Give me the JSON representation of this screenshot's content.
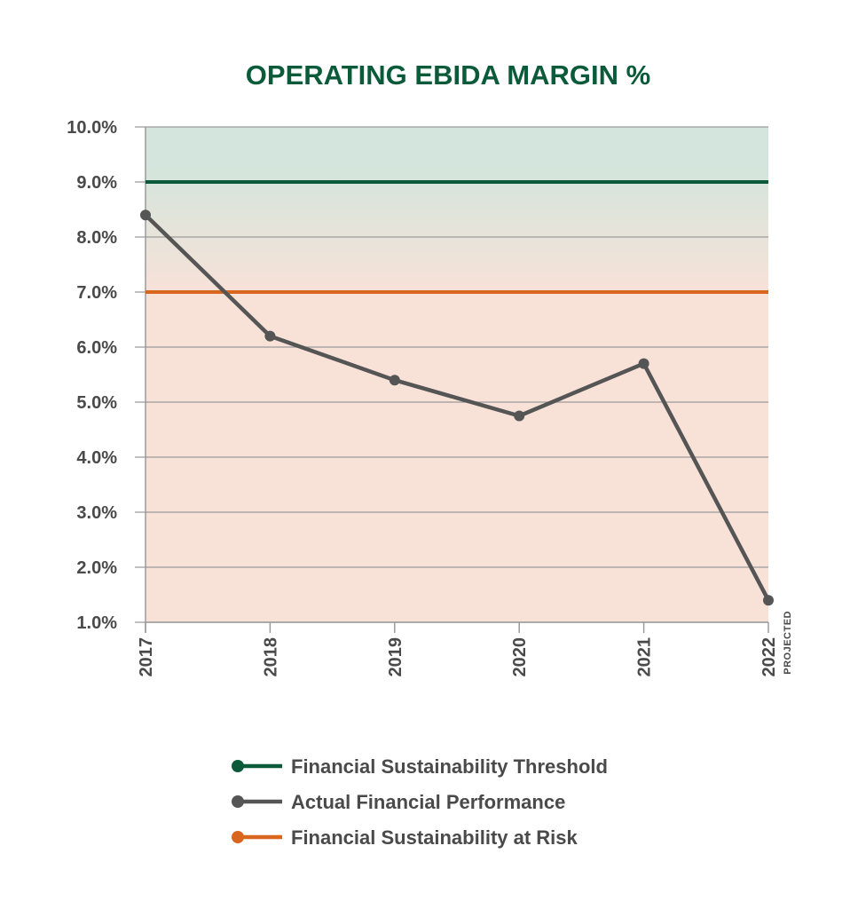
{
  "chart_data": {
    "type": "line",
    "title": "OPERATING EBIDA MARGIN %",
    "xlabel": "",
    "ylabel": "",
    "categories": [
      "2017",
      "2018",
      "2019",
      "2020",
      "2021",
      "2022"
    ],
    "category_notes": {
      "2022": "PROJECTED"
    },
    "ylim": [
      1.0,
      10.0
    ],
    "y_ticks": [
      "1.0%",
      "2.0%",
      "3.0%",
      "4.0%",
      "5.0%",
      "6.0%",
      "7.0%",
      "8.0%",
      "9.0%",
      "10.0%"
    ],
    "grid": true,
    "series": [
      {
        "name": "Actual Financial Performance",
        "color": "#555555",
        "values": [
          8.4,
          6.2,
          5.4,
          4.75,
          5.7,
          1.4
        ]
      }
    ],
    "reference_lines": [
      {
        "name": "Financial Sustainability Threshold",
        "value": 9.0,
        "color": "#0b5a3a"
      },
      {
        "name": "Financial Sustainability at Risk",
        "value": 7.0,
        "color": "#d9661f"
      }
    ],
    "legend": {
      "position": "bottom",
      "items": [
        {
          "label": "Financial Sustainability Threshold",
          "color": "#0b5a3a"
        },
        {
          "label": "Actual Financial Performance",
          "color": "#555555"
        },
        {
          "label": "Financial Sustainability at Risk",
          "color": "#d9661f"
        }
      ]
    },
    "background_colors": {
      "top": "#d3e5dc",
      "bottom": "#f8e2d8"
    }
  }
}
